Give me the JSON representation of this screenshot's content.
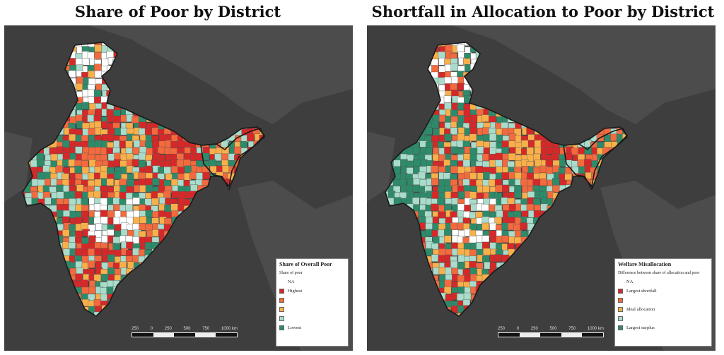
{
  "panels": [
    {
      "title": "Share of Poor by District",
      "legend": {
        "title": "Share of Overall Poor",
        "subtitle": "Share of poor",
        "items": [
          {
            "label": "NA",
            "color": "#ffffff"
          },
          {
            "label": "Highest",
            "color": "#d62828"
          },
          {
            "label": "",
            "color": "#f26a3d"
          },
          {
            "label": "",
            "color": "#f9b04a"
          },
          {
            "label": "",
            "color": "#a9dccb"
          },
          {
            "label": "Lowest",
            "color": "#2e8b6a"
          }
        ]
      },
      "scale": {
        "ticks": [
          "250",
          "0",
          "250",
          "500",
          "750",
          "1000 km"
        ]
      }
    },
    {
      "title": "Shortfall in Allocation to Poor by District",
      "legend": {
        "title": "Welfare Misallocation",
        "subtitle": "Difference between share of allocation and poor",
        "items": [
          {
            "label": "NA",
            "color": "#ffffff"
          },
          {
            "label": "Largest shortfall",
            "color": "#d62828"
          },
          {
            "label": "",
            "color": "#f26a3d"
          },
          {
            "label": "Ideal allocation",
            "color": "#f9b04a"
          },
          {
            "label": "",
            "color": "#a9dccb"
          },
          {
            "label": "Largest surplus",
            "color": "#2e8b6a"
          }
        ]
      },
      "scale": {
        "ticks": [
          "250",
          "0",
          "250",
          "500",
          "750",
          "1000 km"
        ]
      }
    }
  ],
  "colors": {
    "background_land": "#4a4a4a",
    "background_sea": "#3a3a3a",
    "na": "#ffffff",
    "border": "#222222"
  }
}
